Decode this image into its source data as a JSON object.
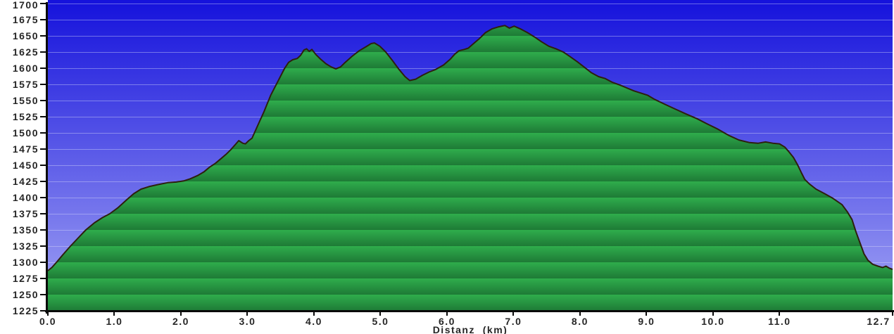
{
  "chart_data": {
    "type": "area",
    "title": "",
    "xlabel": "Distanz  (km)",
    "ylabel": "",
    "x_unit": "km",
    "y_unit": "m",
    "xlim": [
      0,
      12.7
    ],
    "ylim": [
      1225,
      1700
    ],
    "grid": true,
    "legend": "none",
    "y_ticks": [
      {
        "m": 1225,
        "label": "1225"
      },
      {
        "m": 1250,
        "label": "1250"
      },
      {
        "m": 1275,
        "label": "1275"
      },
      {
        "m": 1300,
        "label": "1300"
      },
      {
        "m": 1325,
        "label": "1325"
      },
      {
        "m": 1350,
        "label": "1350"
      },
      {
        "m": 1375,
        "label": "1375"
      },
      {
        "m": 1400,
        "label": "1400"
      },
      {
        "m": 1425,
        "label": "1425"
      },
      {
        "m": 1450,
        "label": "1450"
      },
      {
        "m": 1475,
        "label": "1475"
      },
      {
        "m": 1500,
        "label": "1500"
      },
      {
        "m": 1525,
        "label": "1525"
      },
      {
        "m": 1550,
        "label": "1550"
      },
      {
        "m": 1575,
        "label": "1575"
      },
      {
        "m": 1600,
        "label": "1600"
      },
      {
        "m": 1625,
        "label": "1625"
      },
      {
        "m": 1650,
        "label": "1650"
      },
      {
        "m": 1675,
        "label": "1675"
      },
      {
        "m": 1700,
        "label": "1700"
      }
    ],
    "x_ticks": [
      {
        "km": 0.0,
        "label": "0.0"
      },
      {
        "km": 1.0,
        "label": "1.0"
      },
      {
        "km": 2.0,
        "label": "2.0"
      },
      {
        "km": 3.0,
        "label": "3.0"
      },
      {
        "km": 4.0,
        "label": "4.0"
      },
      {
        "km": 5.0,
        "label": "5.0"
      },
      {
        "km": 6.0,
        "label": "6.0"
      },
      {
        "km": 7.0,
        "label": "7.0"
      },
      {
        "km": 8.0,
        "label": "8.0"
      },
      {
        "km": 9.0,
        "label": "9.0"
      },
      {
        "km": 10.0,
        "label": "10.0"
      },
      {
        "km": 11.0,
        "label": "11.0"
      },
      {
        "km": 12.7,
        "label": "12.7"
      }
    ],
    "profile": [
      [
        0.0,
        1287
      ],
      [
        0.06,
        1292
      ],
      [
        0.13,
        1300
      ],
      [
        0.22,
        1311
      ],
      [
        0.34,
        1325
      ],
      [
        0.45,
        1337
      ],
      [
        0.57,
        1350
      ],
      [
        0.7,
        1361
      ],
      [
        0.82,
        1369
      ],
      [
        0.93,
        1375
      ],
      [
        1.05,
        1384
      ],
      [
        1.19,
        1397
      ],
      [
        1.29,
        1406
      ],
      [
        1.4,
        1413
      ],
      [
        1.52,
        1417
      ],
      [
        1.65,
        1420
      ],
      [
        1.8,
        1423
      ],
      [
        1.93,
        1424
      ],
      [
        2.05,
        1426
      ],
      [
        2.14,
        1429
      ],
      [
        2.25,
        1434
      ],
      [
        2.35,
        1440
      ],
      [
        2.43,
        1447
      ],
      [
        2.52,
        1453
      ],
      [
        2.6,
        1460
      ],
      [
        2.68,
        1467
      ],
      [
        2.75,
        1474
      ],
      [
        2.81,
        1481
      ],
      [
        2.87,
        1488
      ],
      [
        2.93,
        1484
      ],
      [
        2.97,
        1483
      ],
      [
        3.02,
        1488
      ],
      [
        3.07,
        1492
      ],
      [
        3.14,
        1508
      ],
      [
        3.25,
        1533
      ],
      [
        3.35,
        1558
      ],
      [
        3.46,
        1580
      ],
      [
        3.56,
        1600
      ],
      [
        3.62,
        1609
      ],
      [
        3.68,
        1613
      ],
      [
        3.75,
        1615
      ],
      [
        3.8,
        1620
      ],
      [
        3.85,
        1628
      ],
      [
        3.89,
        1630
      ],
      [
        3.93,
        1626
      ],
      [
        3.97,
        1629
      ],
      [
        4.03,
        1621
      ],
      [
        4.1,
        1614
      ],
      [
        4.18,
        1607
      ],
      [
        4.26,
        1602
      ],
      [
        4.33,
        1599
      ],
      [
        4.4,
        1602
      ],
      [
        4.47,
        1609
      ],
      [
        4.57,
        1618
      ],
      [
        4.68,
        1627
      ],
      [
        4.78,
        1633
      ],
      [
        4.86,
        1638
      ],
      [
        4.91,
        1639
      ],
      [
        4.99,
        1634
      ],
      [
        5.08,
        1625
      ],
      [
        5.18,
        1612
      ],
      [
        5.28,
        1598
      ],
      [
        5.37,
        1587
      ],
      [
        5.44,
        1581
      ],
      [
        5.53,
        1583
      ],
      [
        5.63,
        1589
      ],
      [
        5.73,
        1594
      ],
      [
        5.83,
        1598
      ],
      [
        5.95,
        1605
      ],
      [
        6.05,
        1614
      ],
      [
        6.12,
        1622
      ],
      [
        6.18,
        1627
      ],
      [
        6.26,
        1629
      ],
      [
        6.32,
        1631
      ],
      [
        6.4,
        1638
      ],
      [
        6.49,
        1646
      ],
      [
        6.58,
        1655
      ],
      [
        6.68,
        1661
      ],
      [
        6.78,
        1664
      ],
      [
        6.87,
        1666
      ],
      [
        6.94,
        1662
      ],
      [
        7.01,
        1665
      ],
      [
        7.1,
        1661
      ],
      [
        7.21,
        1655
      ],
      [
        7.32,
        1648
      ],
      [
        7.42,
        1641
      ],
      [
        7.53,
        1634
      ],
      [
        7.64,
        1630
      ],
      [
        7.75,
        1625
      ],
      [
        7.85,
        1618
      ],
      [
        7.96,
        1610
      ],
      [
        8.06,
        1602
      ],
      [
        8.17,
        1593
      ],
      [
        8.28,
        1587
      ],
      [
        8.38,
        1584
      ],
      [
        8.49,
        1578
      ],
      [
        8.6,
        1574
      ],
      [
        8.81,
        1565
      ],
      [
        9.02,
        1558
      ],
      [
        9.12,
        1552
      ],
      [
        9.28,
        1544
      ],
      [
        9.43,
        1537
      ],
      [
        9.6,
        1529
      ],
      [
        9.76,
        1522
      ],
      [
        9.91,
        1514
      ],
      [
        10.07,
        1506
      ],
      [
        10.24,
        1496
      ],
      [
        10.39,
        1489
      ],
      [
        10.55,
        1485
      ],
      [
        10.68,
        1484
      ],
      [
        10.79,
        1486
      ],
      [
        10.9,
        1484
      ],
      [
        11.0,
        1483
      ],
      [
        11.08,
        1478
      ],
      [
        11.14,
        1471
      ],
      [
        11.21,
        1462
      ],
      [
        11.27,
        1451
      ],
      [
        11.33,
        1438
      ],
      [
        11.38,
        1428
      ],
      [
        11.45,
        1421
      ],
      [
        11.55,
        1413
      ],
      [
        11.68,
        1406
      ],
      [
        11.8,
        1399
      ],
      [
        11.94,
        1389
      ],
      [
        12.02,
        1378
      ],
      [
        12.09,
        1366
      ],
      [
        12.15,
        1347
      ],
      [
        12.21,
        1330
      ],
      [
        12.27,
        1313
      ],
      [
        12.33,
        1303
      ],
      [
        12.4,
        1297
      ],
      [
        12.48,
        1294
      ],
      [
        12.55,
        1292
      ],
      [
        12.6,
        1294
      ],
      [
        12.65,
        1291
      ],
      [
        12.7,
        1289
      ]
    ]
  },
  "colors": {
    "sky_top": "#1512dc",
    "sky_bottom": "#a2a4f4",
    "gridline": "rgba(215,220,250,0.42)",
    "area_band_light": "#2fad4c",
    "area_band_dark": "#1e7a36",
    "profile_outline": "#2e1f0e",
    "axis": "#0a0a0a",
    "right_border": "#2db14d",
    "label_text": "#262626"
  }
}
